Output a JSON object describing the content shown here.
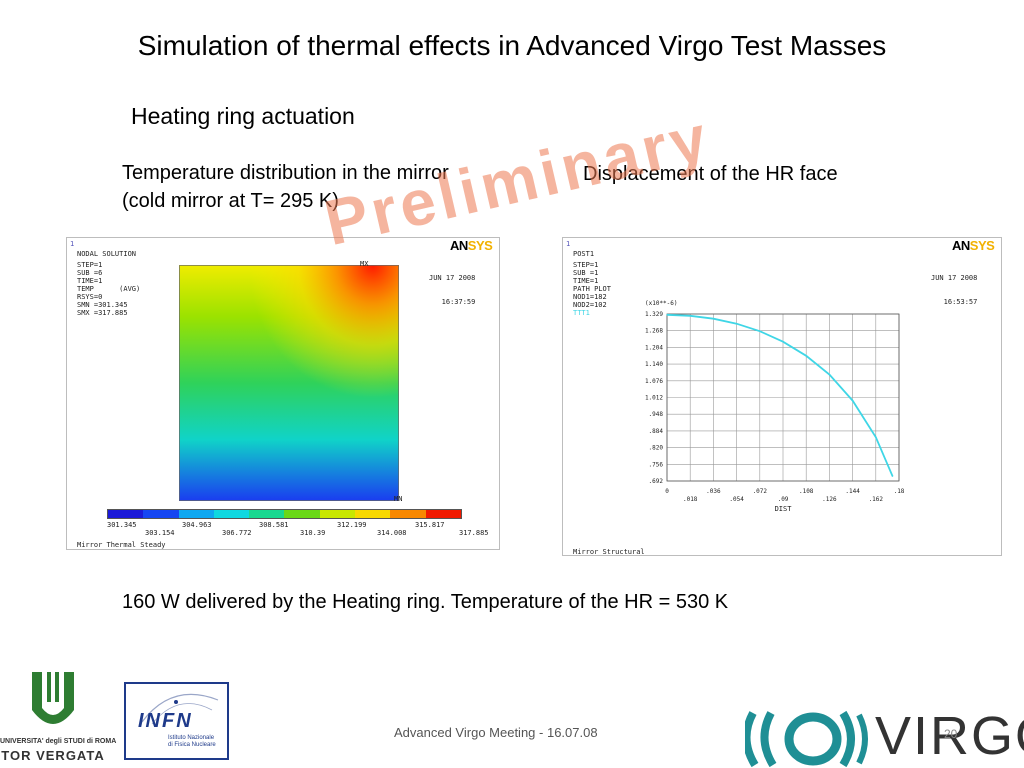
{
  "slide": {
    "title": "Simulation of thermal effects in Advanced Virgo Test Masses",
    "subtitle": "Heating ring actuation",
    "left_caption_line1": "Temperature distribution in the mirror",
    "left_caption_line2": "(cold mirror at T= 295 K)",
    "right_caption": "Displacement of the HR face",
    "bottom_text": "160 W delivered by the Heating ring. Temperature of the HR = 530 K",
    "watermark": "Preliminary",
    "footer": "Advanced Virgo Meeting - 16.07.08",
    "page_number": "20"
  },
  "thermal_plot": {
    "index": "1",
    "info_lines": [
      "NODAL SOLUTION",
      "STEP=1",
      "SUB =6",
      "TIME=1",
      "TEMP      (AVG)",
      "RSYS=0",
      "SMN =301.345",
      "SMX =317.885"
    ],
    "date": "JUN 17 2008",
    "time": "16:37:59",
    "mx_label": "MX",
    "mn_label": "MN",
    "legend_top": [
      "301.345",
      "304.963",
      "308.581",
      "312.199",
      "315.817"
    ],
    "legend_bottom": [
      "303.154",
      "306.772",
      "310.39",
      "314.008",
      "317.885"
    ],
    "footer": "Mirror Thermal Steady",
    "logo_an": "AN",
    "logo_sys": "SYS"
  },
  "structural_plot": {
    "index": "1",
    "info_lines": [
      "POST1",
      "STEP=1",
      "SUB =1",
      "TIME=1",
      "PATH PLOT",
      "NOD1=182",
      "NOD2=102"
    ],
    "series_label": "TTT1",
    "date": "JUN 17 2008",
    "time": "16:53:57",
    "multiplier": "(x10**-6)",
    "xlabel": "DIST",
    "footer": "Mirror Structural",
    "logo_an": "AN",
    "logo_sys": "SYS"
  },
  "chart_data": {
    "type": "line",
    "xlabel": "DIST",
    "ylabel": "",
    "xlim": [
      0,
      0.18
    ],
    "ylim": [
      0.692,
      1.332
    ],
    "x_ticks_upper": [
      "0",
      ".036",
      ".072",
      ".108",
      ".144",
      ".18"
    ],
    "x_ticks_lower": [
      ".018",
      ".054",
      ".09",
      ".126",
      ".162"
    ],
    "y_ticks": [
      "1.329",
      "1.268",
      "1.204",
      "1.140",
      "1.076",
      "1.012",
      ".948",
      ".884",
      ".820",
      ".756",
      ".692"
    ],
    "series": [
      {
        "name": "TTT1",
        "color": "#3fd6e6",
        "x": [
          0,
          0.018,
          0.036,
          0.054,
          0.072,
          0.09,
          0.108,
          0.126,
          0.144,
          0.162,
          0.175
        ],
        "y": [
          1.329,
          1.325,
          1.314,
          1.295,
          1.266,
          1.226,
          1.172,
          1.1,
          1.0,
          0.86,
          0.71
        ]
      }
    ],
    "grid": true
  },
  "logos": {
    "univ_line1": "UNIVERSITA' degli STUDI di ROMA",
    "univ_line2": "TOR VERGATA",
    "infn_name": "INFN",
    "infn_sub1": "Istituto Nazionale",
    "infn_sub2": "di Fisica Nucleare",
    "virgo_text": "VIRGO"
  },
  "colors": {
    "accent": "#3fd6e6",
    "infn_blue": "#1e3a8a",
    "virgo_teal": "#1f8f95",
    "univ_green": "#2e7d32",
    "watermark": "#ec7850"
  }
}
